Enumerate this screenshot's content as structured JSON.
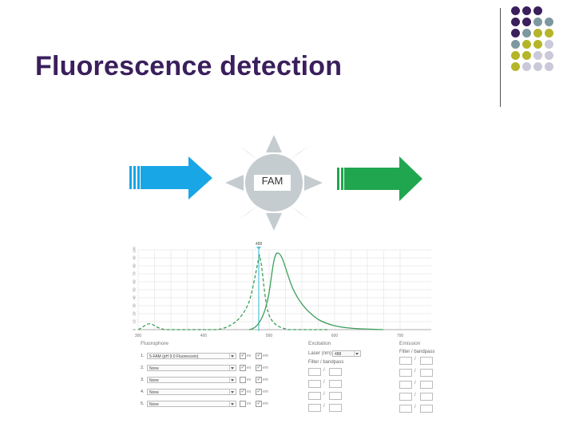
{
  "slide": {
    "title": "Fluorescence detection",
    "dye_label": "FAM"
  },
  "colors": {
    "title": "#3a1f5c",
    "excitation_arrow": "#18a6e6",
    "emission_arrow": "#21a650",
    "sun": "#c5ccd0",
    "spectrum_line": "#3d9e5a",
    "laser_line": "#4ec4d8"
  },
  "dot_grid": {
    "colors": [
      "#3a1f5c",
      "#7e98a0",
      "#b5b52a",
      "#c9c9d9"
    ],
    "rows": [
      [
        0,
        0,
        0,
        -1
      ],
      [
        0,
        0,
        1,
        1
      ],
      [
        0,
        1,
        2,
        2
      ],
      [
        1,
        2,
        2,
        3
      ],
      [
        2,
        2,
        3,
        3
      ],
      [
        2,
        3,
        3,
        3
      ]
    ]
  },
  "spectrum": {
    "laser_marker": "488",
    "x_ticks": [
      "300",
      "400",
      "500",
      "600",
      "700"
    ],
    "y_ticks": [
      "0",
      "10",
      "20",
      "30",
      "40",
      "50",
      "60",
      "70",
      "80",
      "90",
      "100"
    ]
  },
  "fluorophore_panel": {
    "header": "Fluorophore",
    "ex_label": "ex",
    "em_label": "em",
    "rows": [
      {
        "num": "1.",
        "value": "5-FAM (pH 9.0 Fluorescein)",
        "ex": true,
        "em": true
      },
      {
        "num": "2.",
        "value": "None",
        "ex": true,
        "em": true
      },
      {
        "num": "3.",
        "value": "None",
        "ex": false,
        "em": true
      },
      {
        "num": "4.",
        "value": "None",
        "ex": true,
        "em": true
      },
      {
        "num": "5.",
        "value": "None",
        "ex": false,
        "em": true
      }
    ]
  },
  "excitation_panel": {
    "header": "Excitation",
    "laser_label": "Laser (nm):",
    "laser_value": "488",
    "filter_label": "Filter / bandpass"
  },
  "emission_panel": {
    "header": "Emission",
    "filter_label": "Filter / bandpass"
  }
}
